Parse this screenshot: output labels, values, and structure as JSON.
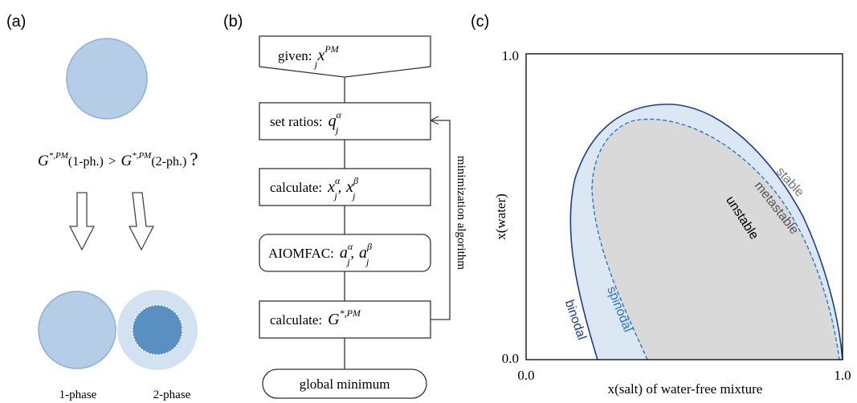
{
  "panel_a": {
    "label": "(a)",
    "question": {
      "g_sym": "G",
      "sup": "*,PM",
      "left_arg": "(1-ph.)",
      "op": ">",
      "right_arg": "(2-ph.)",
      "qmark": "?"
    },
    "phase1_label": "1-phase",
    "phase2_label": "2-phase",
    "colors": {
      "light": "#b5cde6",
      "dark": "#5a8fc2",
      "halo": "#d3e2f1"
    }
  },
  "panel_b": {
    "label": "(b)",
    "box_given": {
      "text": "given:",
      "var": "x",
      "sub": "j",
      "sup": "PM"
    },
    "box_ratios": {
      "text": "set ratios:",
      "var": "q",
      "sub": "j",
      "sup": "α"
    },
    "box_calc1": {
      "text": "calculate:",
      "var1": "x",
      "sub1": "j",
      "sup1": "α",
      "sep": ",",
      "var2": "x",
      "sub2": "j",
      "sup2": "β"
    },
    "box_aiomfac": {
      "text": "AIOMFAC:",
      "var1": "a",
      "sub1": "j",
      "sup1": "α",
      "sep": ",",
      "var2": "a",
      "sub2": "j",
      "sup2": "β"
    },
    "box_calc2": {
      "text": "calculate:",
      "var": "G",
      "sup": "*,PM"
    },
    "box_global": {
      "text": "global minimum"
    },
    "loop_label": "minimization algorithm"
  },
  "panel_c": {
    "label": "(c)",
    "xlabel": "x(salt)  of water-free mixture",
    "ylabel": "x(water)",
    "ticks": {
      "x0": "0.0",
      "x1": "1.0",
      "y0": "0.0",
      "y1": "1.0"
    },
    "region_labels": {
      "stable": "stable",
      "metastable": "metastable",
      "unstable": "unstable"
    },
    "curve_labels": {
      "binodal": "binodal",
      "spinodal": "spinodal"
    },
    "colors": {
      "binodal": "#1f3d8f",
      "spinodal": "#2a78c4",
      "meta_fill": "#dce7f4",
      "unstable_fill": "#d9d9d9"
    }
  }
}
